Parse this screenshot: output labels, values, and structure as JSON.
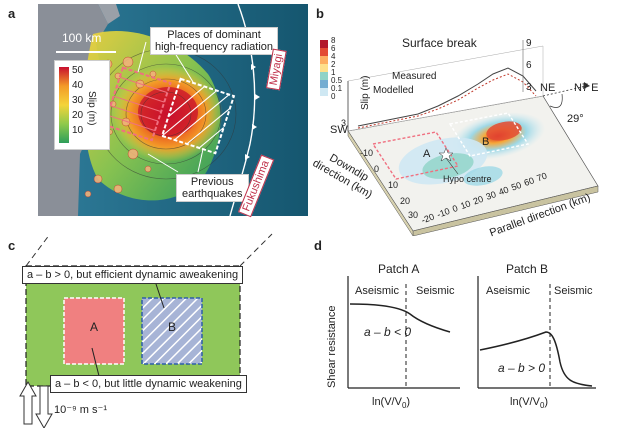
{
  "panel_a": {
    "label": "a",
    "scale": "100 km",
    "callout_top": [
      "Places of dominant",
      "high-frequency radiation"
    ],
    "callout_bottom": [
      "Previous",
      "earthquakes"
    ],
    "region_miyagi": "Miyagi",
    "region_fukushima": "Fukushima",
    "colorbar": {
      "title": "Slip (m)",
      "ticks": [
        "50",
        "40",
        "30",
        "20",
        "10"
      ]
    }
  },
  "panel_b": {
    "label": "b",
    "title": "Surface break",
    "colorbar_ticks": [
      "8",
      "6",
      "4",
      "2",
      "1",
      "0.5",
      "0.1",
      "0"
    ],
    "slip_label": "Slip (m)",
    "slip_ticks": [
      "9",
      "6",
      "3"
    ],
    "legend_measured": "Measured",
    "legend_modelled": "Modelled",
    "slip_axis_ticks": [
      "9",
      "6",
      "3"
    ],
    "dir_sw": "SW",
    "dir_ne": "NE",
    "dir_n7e": "N7 E",
    "angle": "29°",
    "patch_a": "A",
    "patch_b": "B",
    "hypo": "Hypo centre",
    "downdip_label_1": "Downdip",
    "downdip_label_2": "direction (km)",
    "downdip_ticks": [
      "-10",
      "0",
      "10",
      "20",
      "30"
    ],
    "parallel_label": "Parallel direction (km)",
    "parallel_ticks": [
      "-20",
      "-10",
      "0",
      "10",
      "20",
      "30",
      "40",
      "50",
      "60",
      "70"
    ]
  },
  "panel_c": {
    "label": "c",
    "top_box": "a – b > 0, but efficient dynamic aweakening",
    "bottom_box": "a – b < 0, but little dynamic weakening",
    "patch_a": "A",
    "patch_b": "B",
    "rate": "10⁻⁹ m s⁻¹"
  },
  "panel_d": {
    "label": "d",
    "patch_a_title": "Patch A",
    "patch_b_title": "Patch B",
    "aseismic": "Aseismic",
    "seismic": "Seismic",
    "condition_a": "a – b < 0",
    "condition_b": "a – b > 0",
    "ylabel": "Shear resistance",
    "xlabel": "ln(V/V",
    "xlabel_sub": "0",
    "xlabel_close": ")"
  }
}
